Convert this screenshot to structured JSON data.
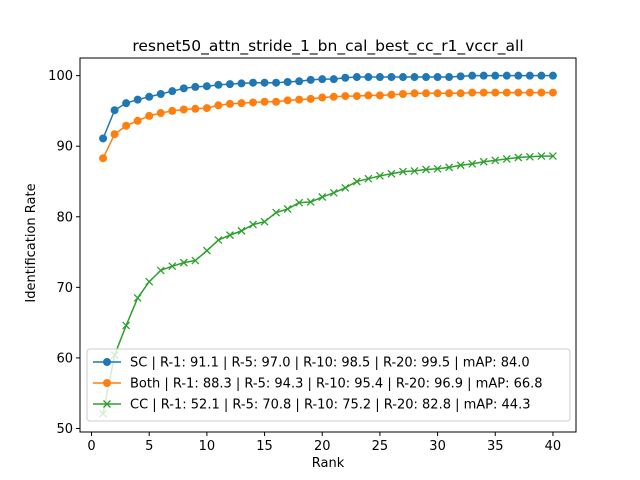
{
  "chart_data": {
    "type": "line",
    "title": "resnet50_attn_stride_1_bn_cal_best_cc_r1_vccr_all",
    "xlabel": "Rank",
    "ylabel": "Identification Rate",
    "xlim": [
      -1,
      42
    ],
    "ylim": [
      49.5,
      102.5
    ],
    "xticks": [
      0,
      5,
      10,
      15,
      20,
      25,
      30,
      35,
      40
    ],
    "yticks": [
      50,
      60,
      70,
      80,
      90,
      100
    ],
    "grid": false,
    "legend_position": "lower-right",
    "x": [
      1,
      2,
      3,
      4,
      5,
      6,
      7,
      8,
      9,
      10,
      11,
      12,
      13,
      14,
      15,
      16,
      17,
      18,
      19,
      20,
      21,
      22,
      23,
      24,
      25,
      26,
      27,
      28,
      29,
      30,
      31,
      32,
      33,
      34,
      35,
      36,
      37,
      38,
      39,
      40
    ],
    "series": [
      {
        "name": "SC | R-1: 91.1 | R-5: 97.0 | R-10: 98.5 | R-20: 99.5 | mAP: 84.0",
        "color": "#1f77b4",
        "marker": "circle",
        "values": [
          91.1,
          95.1,
          96.1,
          96.6,
          97.0,
          97.4,
          97.8,
          98.2,
          98.4,
          98.5,
          98.7,
          98.8,
          98.9,
          99.0,
          99.0,
          99.0,
          99.1,
          99.2,
          99.4,
          99.5,
          99.5,
          99.7,
          99.8,
          99.8,
          99.8,
          99.8,
          99.8,
          99.8,
          99.8,
          99.8,
          99.8,
          99.9,
          100.0,
          100.0,
          100.0,
          100.0,
          100.0,
          100.0,
          100.0,
          100.0
        ]
      },
      {
        "name": "Both | R-1: 88.3 | R-5: 94.3 | R-10: 95.4 | R-20: 96.9 | mAP: 66.8",
        "color": "#ff7f0e",
        "marker": "circle",
        "values": [
          88.3,
          91.7,
          92.9,
          93.6,
          94.3,
          94.7,
          95.0,
          95.2,
          95.3,
          95.4,
          95.8,
          96.0,
          96.1,
          96.2,
          96.3,
          96.3,
          96.5,
          96.6,
          96.7,
          96.9,
          97.0,
          97.1,
          97.1,
          97.2,
          97.2,
          97.3,
          97.4,
          97.5,
          97.5,
          97.5,
          97.5,
          97.5,
          97.6,
          97.6,
          97.6,
          97.6,
          97.6,
          97.6,
          97.6,
          97.6
        ]
      },
      {
        "name": "CC | R-1: 52.1 | R-5: 70.8 | R-10: 75.2 | R-20: 82.8 | mAP: 44.3",
        "color": "#2ca02c",
        "marker": "x",
        "values": [
          52.1,
          60.4,
          64.6,
          68.5,
          70.8,
          72.4,
          73.0,
          73.5,
          73.8,
          75.2,
          76.7,
          77.4,
          78.0,
          78.9,
          79.3,
          80.6,
          81.1,
          82.0,
          82.1,
          82.8,
          83.4,
          84.1,
          85.0,
          85.4,
          85.8,
          86.1,
          86.4,
          86.5,
          86.7,
          86.8,
          87.0,
          87.3,
          87.5,
          87.8,
          88.0,
          88.2,
          88.4,
          88.5,
          88.6,
          88.6
        ]
      }
    ]
  }
}
